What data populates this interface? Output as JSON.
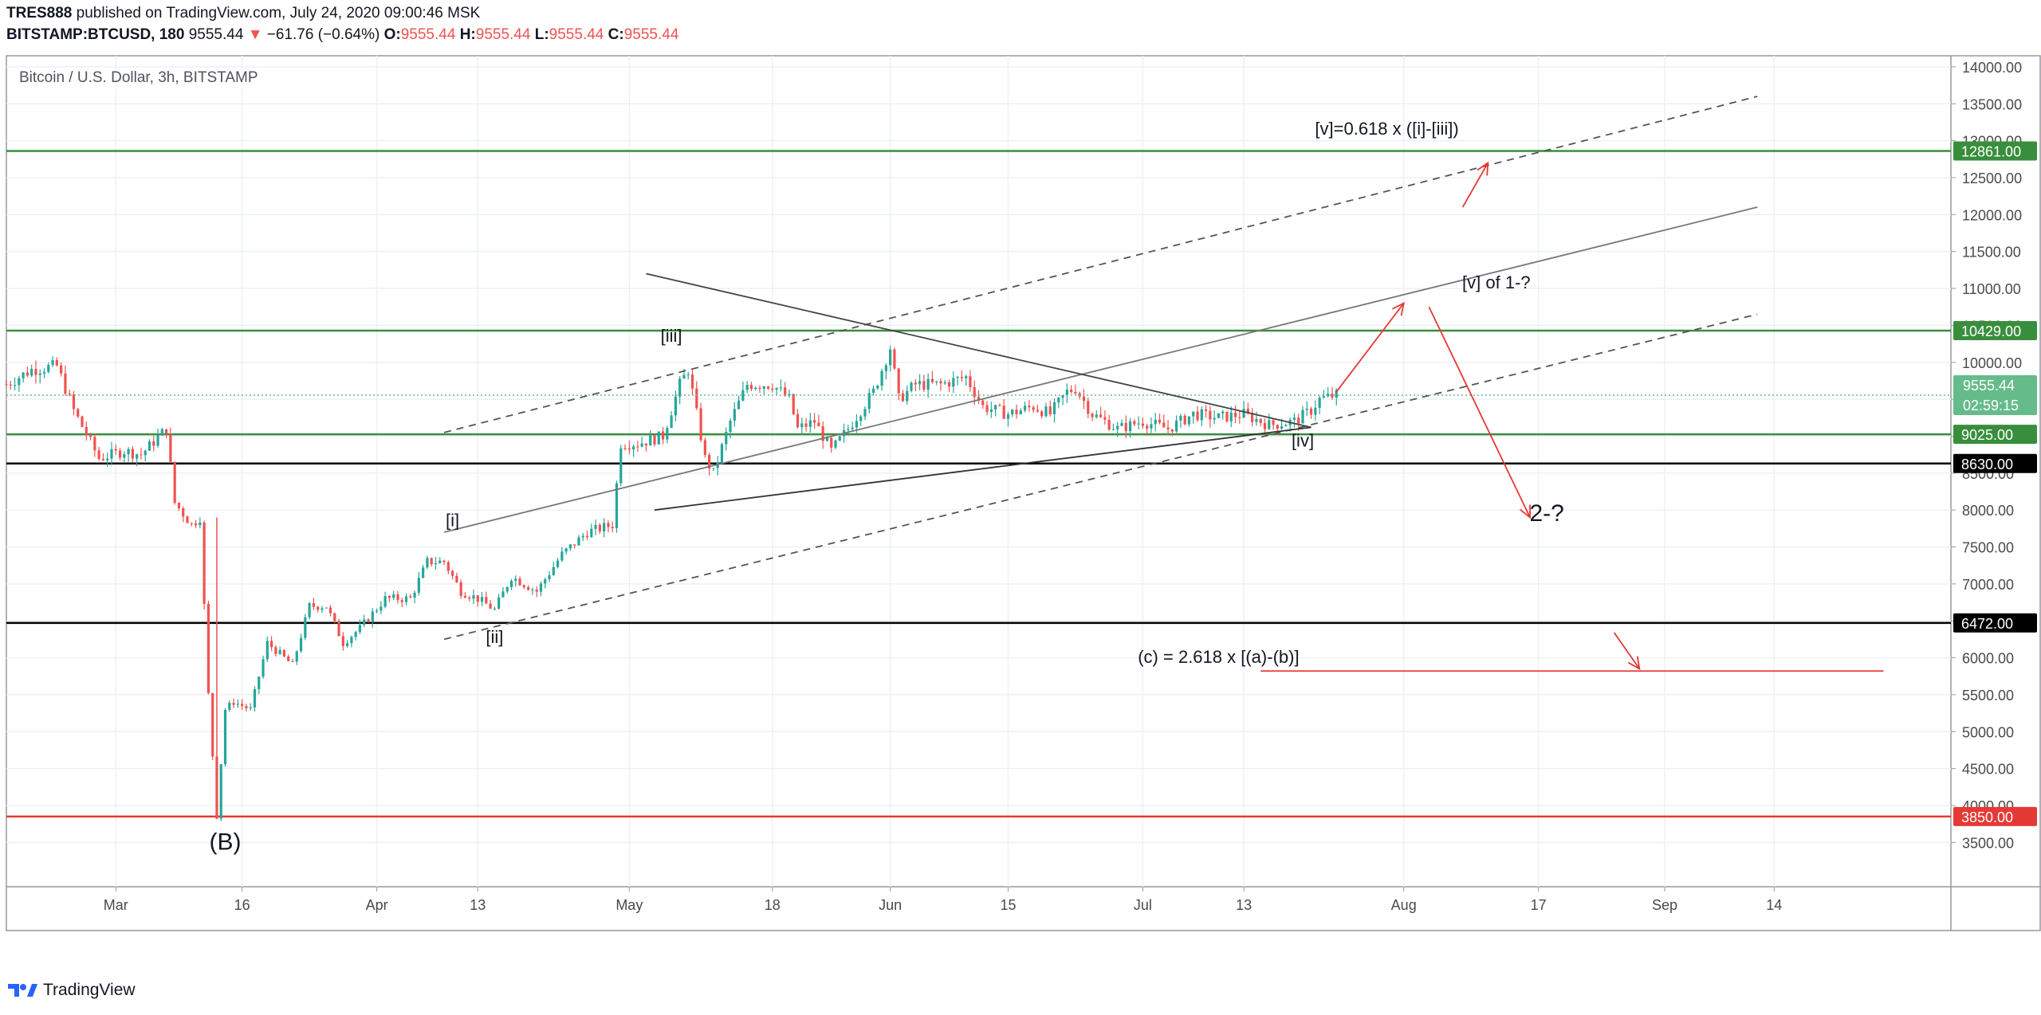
{
  "header": {
    "publisher": "TRES888",
    "published_text": " published on TradingView.com, July 24, 2020 09:00:46 MSK",
    "symbol": "BITSTAMP:BTCUSD, 180",
    "last": "9555.44",
    "change_arrow": "▼",
    "change": "−61.76 (−0.64%)",
    "o_label": "O:",
    "o": "9555.44",
    "h_label": "H:",
    "h": "9555.44",
    "l_label": "L:",
    "l": "9555.44",
    "c_label": "C:",
    "c": "9555.44"
  },
  "footer": {
    "brand": "TradingView"
  },
  "chart_data": {
    "type": "candlestick",
    "title": "Bitcoin / U.S. Dollar, 3h, BITSTAMP",
    "x_tick_labels": [
      "Mar",
      "16",
      "Apr",
      "13",
      "May",
      "18",
      "Jun",
      "15",
      "Jul",
      "13",
      "Aug",
      "17",
      "Sep",
      "14"
    ],
    "x_tick_dates": [
      "2020-03-01",
      "2020-03-16",
      "2020-04-01",
      "2020-04-13",
      "2020-05-01",
      "2020-05-18",
      "2020-06-01",
      "2020-06-15",
      "2020-07-01",
      "2020-07-13",
      "2020-08-01",
      "2020-08-17",
      "2020-09-01",
      "2020-09-14"
    ],
    "y_ticks": [
      3500,
      4000,
      4500,
      5000,
      5500,
      6000,
      6500,
      7000,
      7500,
      8000,
      8500,
      9000,
      9500,
      10000,
      10500,
      11000,
      11500,
      12000,
      12500,
      13000,
      13500,
      14000
    ],
    "ylim": [
      2900,
      14150
    ],
    "xlim": [
      "2020-02-17",
      "2020-10-05"
    ],
    "price_series": [
      [
        "2020-02-17",
        9700
      ],
      [
        "2020-02-20",
        9900
      ],
      [
        "2020-02-23",
        9950
      ],
      [
        "2020-02-25",
        9350
      ],
      [
        "2020-02-28",
        8700
      ],
      [
        "2020-03-02",
        8800
      ],
      [
        "2020-03-04",
        8750
      ],
      [
        "2020-03-07",
        9100
      ],
      [
        "2020-03-08",
        8100
      ],
      [
        "2020-03-10",
        7800
      ],
      [
        "2020-03-11",
        7900
      ],
      [
        "2020-03-12",
        5500
      ],
      [
        "2020-03-13",
        3850
      ],
      [
        "2020-03-14",
        5300
      ],
      [
        "2020-03-15",
        5400
      ],
      [
        "2020-03-17",
        5300
      ],
      [
        "2020-03-19",
        6200
      ],
      [
        "2020-03-20",
        6100
      ],
      [
        "2020-03-22",
        5900
      ],
      [
        "2020-03-24",
        6700
      ],
      [
        "2020-03-26",
        6700
      ],
      [
        "2020-03-28",
        6200
      ],
      [
        "2020-03-30",
        6400
      ],
      [
        "2020-04-02",
        6800
      ],
      [
        "2020-04-05",
        6800
      ],
      [
        "2020-04-07",
        7300
      ],
      [
        "2020-04-09",
        7300
      ],
      [
        "2020-04-11",
        6900
      ],
      [
        "2020-04-13",
        6800
      ],
      [
        "2020-04-15",
        6650
      ],
      [
        "2020-04-17",
        7100
      ],
      [
        "2020-04-20",
        6900
      ],
      [
        "2020-04-23",
        7400
      ],
      [
        "2020-04-26",
        7700
      ],
      [
        "2020-04-29",
        7800
      ],
      [
        "2020-04-30",
        8900
      ],
      [
        "2020-05-02",
        8900
      ],
      [
        "2020-05-05",
        9000
      ],
      [
        "2020-05-07",
        9700
      ],
      [
        "2020-05-08",
        9900
      ],
      [
        "2020-05-10",
        8700
      ],
      [
        "2020-05-11",
        8500
      ],
      [
        "2020-05-13",
        9200
      ],
      [
        "2020-05-15",
        9700
      ],
      [
        "2020-05-18",
        9700
      ],
      [
        "2020-05-20",
        9500
      ],
      [
        "2020-05-21",
        9100
      ],
      [
        "2020-05-23",
        9200
      ],
      [
        "2020-05-25",
        8800
      ],
      [
        "2020-05-27",
        9100
      ],
      [
        "2020-05-30",
        9600
      ],
      [
        "2020-06-01",
        10200
      ],
      [
        "2020-06-02",
        9500
      ],
      [
        "2020-06-04",
        9700
      ],
      [
        "2020-06-07",
        9700
      ],
      [
        "2020-06-10",
        9800
      ],
      [
        "2020-06-12",
        9400
      ],
      [
        "2020-06-15",
        9300
      ],
      [
        "2020-06-18",
        9400
      ],
      [
        "2020-06-20",
        9300
      ],
      [
        "2020-06-22",
        9600
      ],
      [
        "2020-06-23",
        9650
      ],
      [
        "2020-06-25",
        9300
      ],
      [
        "2020-06-28",
        9100
      ],
      [
        "2020-07-01",
        9200
      ],
      [
        "2020-07-04",
        9100
      ],
      [
        "2020-07-07",
        9300
      ],
      [
        "2020-07-10",
        9250
      ],
      [
        "2020-07-13",
        9300
      ],
      [
        "2020-07-16",
        9150
      ],
      [
        "2020-07-19",
        9200
      ],
      [
        "2020-07-21",
        9350
      ],
      [
        "2020-07-22",
        9500
      ],
      [
        "2020-07-24",
        9555.44
      ]
    ],
    "horizontal_levels": [
      {
        "price": 12861,
        "label": "12861.00",
        "color": "#388e3c"
      },
      {
        "price": 10429,
        "label": "10429.00",
        "color": "#388e3c"
      },
      {
        "price": 9025,
        "label": "9025.00",
        "color": "#388e3c"
      },
      {
        "price": 8630,
        "label": "8630.00",
        "color": "#000000"
      },
      {
        "price": 6472,
        "label": "6472.00",
        "color": "#000000"
      },
      {
        "price": 3850,
        "label": "3850.00",
        "color": "#e53935"
      }
    ],
    "last_price": {
      "label": "9555.44",
      "countdown": "02:59:15",
      "color": "#66bb8a"
    },
    "annotations": [
      {
        "text": "[i]",
        "date": "2020-04-10",
        "price": 7780
      },
      {
        "text": "[ii]",
        "date": "2020-04-15",
        "price": 6200
      },
      {
        "text": "[iii]",
        "date": "2020-05-06",
        "price": 10280
      },
      {
        "text": "[iv]",
        "date": "2020-07-20",
        "price": 8860
      },
      {
        "text": "[v]=0.618 x ([i]-[iii])",
        "date": "2020-07-30",
        "price": 13080
      },
      {
        "text": "[v] of 1-?",
        "date": "2020-08-12",
        "price": 11000
      },
      {
        "text": "2-?",
        "date": "2020-08-18",
        "price": 7850
      },
      {
        "text": "(c) = 2.618 x [(a)-(b)]",
        "date": "2020-07-10",
        "price": 5930
      },
      {
        "text": "(B)",
        "date": "2020-03-14",
        "price": 3400
      }
    ],
    "grid": true
  }
}
